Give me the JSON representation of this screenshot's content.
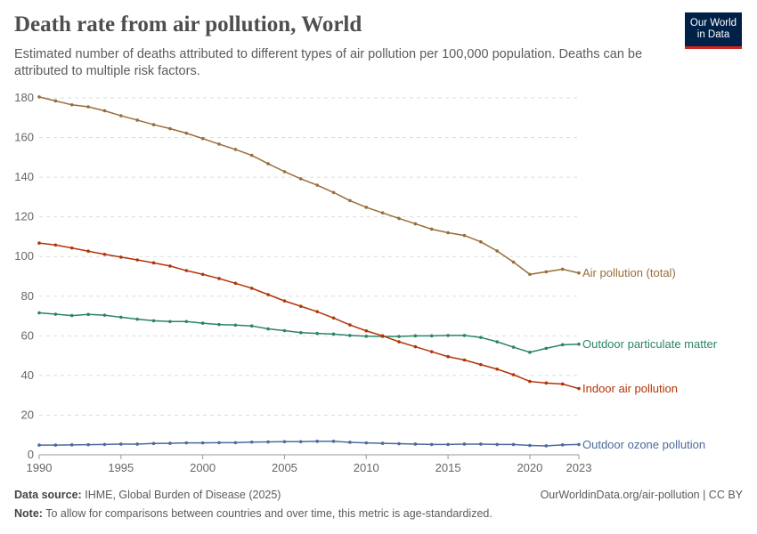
{
  "header": {
    "title": "Death rate from air pollution, World",
    "subtitle": "Estimated number of deaths attributed to different types of air pollution per 100,000 population. Deaths can be attributed to multiple risk factors."
  },
  "logo": {
    "line1": "Our World",
    "line2": "in Data",
    "bg": "#002147",
    "accent": "#ce261e"
  },
  "footer": {
    "source_label": "Data source:",
    "source": "IHME, Global Burden of Disease (2025)",
    "url": "OurWorldinData.org/air-pollution | CC BY",
    "note_label": "Note:",
    "note": "To allow for comparisons between countries and over time, this metric is age-standardized."
  },
  "chart_data": {
    "type": "line",
    "xlim": [
      1990,
      2023
    ],
    "ylim": [
      0,
      180
    ],
    "xticks": [
      1990,
      1995,
      2000,
      2005,
      2010,
      2015,
      2020,
      2023
    ],
    "yticks": [
      0,
      20,
      40,
      60,
      80,
      100,
      120,
      140,
      160,
      180
    ],
    "grid": "horizontal dashed",
    "legend": "inline-right",
    "x": [
      1990,
      1991,
      1992,
      1993,
      1994,
      1995,
      1996,
      1997,
      1998,
      1999,
      2000,
      2001,
      2002,
      2003,
      2004,
      2005,
      2006,
      2007,
      2008,
      2009,
      2010,
      2011,
      2012,
      2013,
      2014,
      2015,
      2016,
      2017,
      2018,
      2019,
      2020,
      2021,
      2022,
      2023
    ],
    "series": [
      {
        "name": "Air pollution (total)",
        "color": "#996d39",
        "values": [
          180.5,
          178.5,
          176.5,
          175.5,
          173.5,
          171,
          168.8,
          166.5,
          164.5,
          162.2,
          159.5,
          156.7,
          154,
          151,
          146.8,
          142.8,
          139.2,
          136,
          132.3,
          128.2,
          124.8,
          122,
          119.2,
          116.5,
          113.8,
          112,
          110.6,
          107.4,
          102.8,
          97.2,
          91,
          92.3,
          93.6,
          91.7
        ]
      },
      {
        "name": "Outdoor particulate matter",
        "color": "#2c8465",
        "values": [
          71.6,
          70.9,
          70.2,
          70.8,
          70.4,
          69.4,
          68.4,
          67.6,
          67.2,
          67.2,
          66.4,
          65.7,
          65.4,
          65,
          63.5,
          62.6,
          61.6,
          61.2,
          60.9,
          60.2,
          59.8,
          59.7,
          59.7,
          60,
          60,
          60.2,
          60.2,
          59.2,
          57,
          54.3,
          51.7,
          53.7,
          55.5,
          55.8
        ]
      },
      {
        "name": "Indoor air pollution",
        "color": "#b13507",
        "values": [
          106.8,
          105.8,
          104.3,
          102.7,
          101.1,
          99.7,
          98.3,
          96.8,
          95.2,
          92.9,
          91,
          88.9,
          86.5,
          84,
          80.8,
          77.6,
          74.9,
          72.2,
          69,
          65.5,
          62.5,
          60,
          57,
          54.5,
          52,
          49.5,
          47.8,
          45.5,
          43.2,
          40.4,
          37,
          36.2,
          35.7,
          33.4
        ]
      },
      {
        "name": "Outdoor ozone pollution",
        "color": "#4c6a9c",
        "values": [
          4.9,
          4.9,
          5.0,
          5.1,
          5.2,
          5.4,
          5.4,
          5.7,
          5.8,
          6.0,
          6.0,
          6.1,
          6.1,
          6.4,
          6.5,
          6.6,
          6.6,
          6.8,
          6.8,
          6.3,
          6.0,
          5.8,
          5.6,
          5.4,
          5.2,
          5.2,
          5.4,
          5.4,
          5.2,
          5.2,
          4.7,
          4.5,
          5.0,
          5.2
        ]
      }
    ]
  }
}
